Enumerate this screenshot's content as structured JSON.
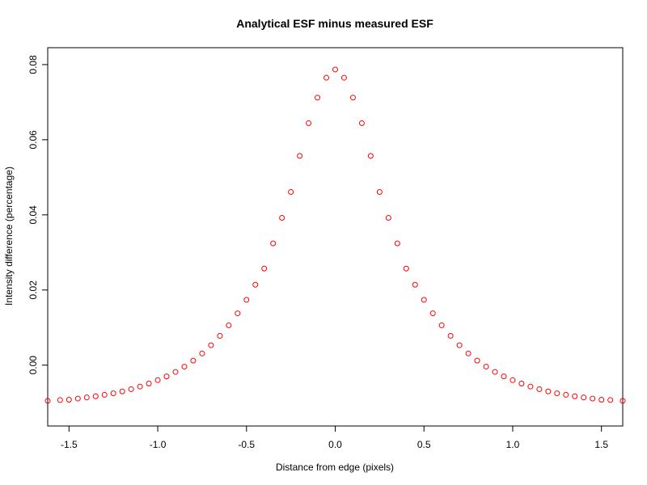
{
  "chart_data": {
    "type": "scatter",
    "title": "Analytical ESF minus measured ESF",
    "xlabel": "Distance from edge (pixels)",
    "ylabel": "Intensity difference (percentage)",
    "xlim": [
      -1.62,
      1.62
    ],
    "ylim": [
      -0.0162,
      0.0845
    ],
    "x_ticks": [
      -1.5,
      -1.0,
      -0.5,
      0.0,
      0.5,
      1.0,
      1.5
    ],
    "x_tick_labels": [
      "-1.5",
      "-1.0",
      "-0.5",
      "0.0",
      "0.5",
      "1.0",
      "1.5"
    ],
    "y_ticks": [
      0.0,
      0.02,
      0.04,
      0.06,
      0.08
    ],
    "y_tick_labels": [
      "0.00",
      "0.02",
      "0.04",
      "0.06",
      "0.08"
    ],
    "grid": false,
    "marker": "open-circle",
    "series": [
      {
        "color": "#ff0000",
        "x": [
          -1.62,
          -1.55,
          -1.5,
          -1.45,
          -1.4,
          -1.35,
          -1.3,
          -1.25,
          -1.2,
          -1.15,
          -1.1,
          -1.05,
          -1.0,
          -0.95,
          -0.9,
          -0.85,
          -0.8,
          -0.75,
          -0.7,
          -0.65,
          -0.6,
          -0.55,
          -0.5,
          -0.45,
          -0.4,
          -0.35,
          -0.3,
          -0.25,
          -0.2,
          -0.15,
          -0.1,
          -0.05,
          0.0,
          0.05,
          0.1,
          0.15,
          0.2,
          0.25,
          0.3,
          0.35,
          0.4,
          0.45,
          0.5,
          0.55,
          0.6,
          0.65,
          0.7,
          0.75,
          0.8,
          0.85,
          0.9,
          0.95,
          1.0,
          1.05,
          1.1,
          1.15,
          1.2,
          1.25,
          1.3,
          1.35,
          1.4,
          1.45,
          1.5,
          1.55,
          1.62
        ],
        "y": [
          -0.0095,
          -0.0093,
          -0.0092,
          -0.0089,
          -0.0086,
          -0.0083,
          -0.0079,
          -0.0075,
          -0.007,
          -0.0064,
          -0.0057,
          -0.0049,
          -0.004,
          -0.003,
          -0.0018,
          -0.0004,
          0.0012,
          0.0031,
          0.0053,
          0.0078,
          0.0106,
          0.0138,
          0.0174,
          0.0214,
          0.0257,
          0.0324,
          0.0392,
          0.0461,
          0.0557,
          0.0644,
          0.0712,
          0.0765,
          0.0787,
          0.0765,
          0.0712,
          0.0644,
          0.0557,
          0.0461,
          0.0392,
          0.0324,
          0.0257,
          0.0214,
          0.0174,
          0.0138,
          0.0106,
          0.0078,
          0.0053,
          0.0031,
          0.0012,
          -0.0004,
          -0.0018,
          -0.003,
          -0.004,
          -0.0049,
          -0.0057,
          -0.0064,
          -0.007,
          -0.0075,
          -0.0079,
          -0.0083,
          -0.0086,
          -0.0089,
          -0.0092,
          -0.0093,
          -0.0095
        ]
      }
    ]
  }
}
